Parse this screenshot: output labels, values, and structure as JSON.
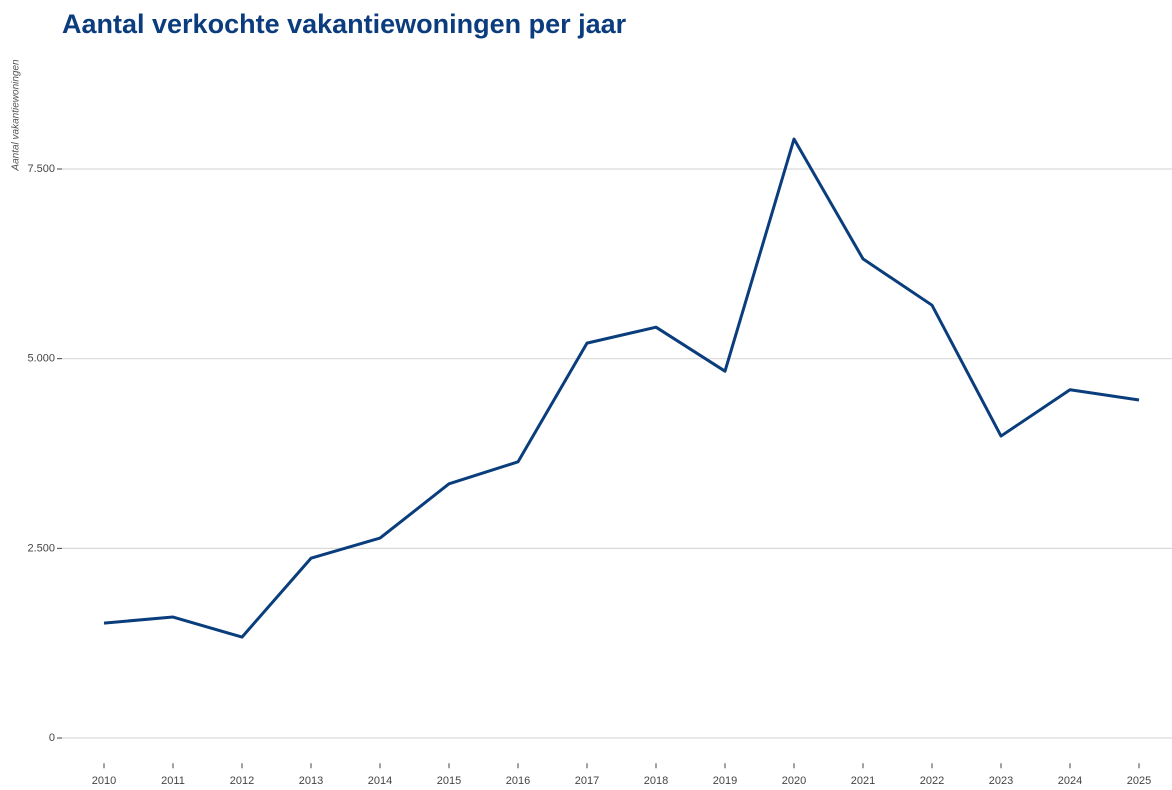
{
  "chart_data": {
    "type": "line",
    "title": "Aantal verkochte vakantiewoningen per jaar",
    "y_label": "Aantal vakantiewoningen",
    "categories": [
      "2010",
      "2011",
      "2012",
      "2013",
      "2014",
      "2015",
      "2016",
      "2017",
      "2018",
      "2019",
      "2020",
      "2021",
      "2022",
      "2023",
      "2024",
      "2025"
    ],
    "series": [
      {
        "name": "Aantal vakantiewoningen",
        "color": "#0a3d7c",
        "values": [
          1515,
          1595,
          1330,
          2370,
          2635,
          3350,
          3640,
          5205,
          5415,
          4835,
          7895,
          6315,
          5705,
          3980,
          4590,
          4455
        ]
      }
    ],
    "ylim": [
      -200,
      9000
    ],
    "yticks": [
      0,
      {
        "value": 2500,
        "label": "2.500"
      },
      {
        "value": 5000,
        "label": "5.000"
      },
      {
        "value": 7500,
        "label": "7.500"
      }
    ],
    "grid": true
  }
}
